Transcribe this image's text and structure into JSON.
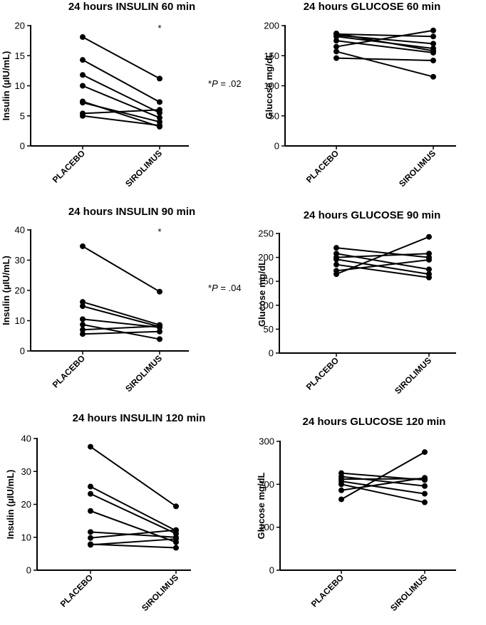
{
  "chart_data": [
    {
      "type": "line",
      "title": "24 hours INSULIN 60 min",
      "ylabel": "Insulin (µIU/mL)",
      "categories": [
        "PLACEBO",
        "SIROLIMUS"
      ],
      "ylim": [
        0,
        20
      ],
      "yticks": [
        0,
        5,
        10,
        15,
        20
      ],
      "significance_marker": "*",
      "annotation": {
        "star": "*",
        "p_italic": "P",
        "rest": " = .02"
      },
      "pairs": [
        [
          18.1,
          11.2
        ],
        [
          14.3,
          7.3
        ],
        [
          11.8,
          5.5
        ],
        [
          10.0,
          4.7
        ],
        [
          7.4,
          3.2
        ],
        [
          7.2,
          4.0
        ],
        [
          5.4,
          6.0
        ],
        [
          5.0,
          3.4
        ]
      ]
    },
    {
      "type": "line",
      "title": "24 hours GLUCOSE 60 min",
      "ylabel": "Glucose mg/dL",
      "categories": [
        "PLACEBO",
        "SIROLIMUS"
      ],
      "ylim": [
        0,
        200
      ],
      "yticks": [
        0,
        50,
        100,
        150,
        200
      ],
      "pairs": [
        [
          187,
          158
        ],
        [
          186,
          182
        ],
        [
          184,
          170
        ],
        [
          182,
          162
        ],
        [
          175,
          155
        ],
        [
          165,
          192
        ],
        [
          157,
          115
        ],
        [
          146,
          142
        ]
      ]
    },
    {
      "type": "line",
      "title": "24 hours INSULIN 90 min",
      "ylabel": "Insulin (µIU/mL)",
      "categories": [
        "PLACEBO",
        "SIROLIMUS"
      ],
      "ylim": [
        0,
        40
      ],
      "yticks": [
        0,
        10,
        20,
        30,
        40
      ],
      "significance_marker": "*",
      "annotation": {
        "star": "*",
        "p_italic": "P",
        "rest": " = .04"
      },
      "pairs": [
        [
          34.6,
          19.6
        ],
        [
          16.2,
          8.6
        ],
        [
          14.8,
          8.0
        ],
        [
          10.5,
          7.8
        ],
        [
          8.7,
          3.9
        ],
        [
          7.0,
          8.2
        ],
        [
          5.6,
          6.4
        ]
      ]
    },
    {
      "type": "line",
      "title": "24 hours GLUCOSE 90 min",
      "ylabel": "Glucose mg/dL",
      "categories": [
        "PLACEBO",
        "SIROLIMUS"
      ],
      "ylim": [
        0,
        250
      ],
      "yticks": [
        0,
        50,
        100,
        150,
        200,
        250
      ],
      "pairs": [
        [
          220,
          200
        ],
        [
          208,
          175
        ],
        [
          200,
          208
        ],
        [
          196,
          165
        ],
        [
          185,
          158
        ],
        [
          172,
          195
        ],
        [
          165,
          243
        ]
      ]
    },
    {
      "type": "line",
      "title": "24 hours INSULIN 120 min",
      "ylabel": "Insulin (µIU/mL)",
      "categories": [
        "PLACEBO",
        "SIROLIMUS"
      ],
      "ylim": [
        0,
        40
      ],
      "yticks": [
        0,
        10,
        20,
        30,
        40
      ],
      "pairs": [
        [
          37.5,
          19.4
        ],
        [
          25.4,
          12.0
        ],
        [
          23.2,
          11.1
        ],
        [
          18.0,
          8.5
        ],
        [
          11.6,
          10.0
        ],
        [
          9.8,
          12.2
        ],
        [
          7.9,
          6.8
        ],
        [
          7.7,
          9.5
        ]
      ]
    },
    {
      "type": "line",
      "title": "24 hours GLUCOSE 120 min",
      "ylabel": "Glucose mg/dL",
      "categories": [
        "PLACEBO",
        "SIROLIMUS"
      ],
      "ylim": [
        0,
        300
      ],
      "yticks": [
        0,
        100,
        200,
        300
      ],
      "pairs": [
        [
          226,
          210
        ],
        [
          218,
          196
        ],
        [
          212,
          213
        ],
        [
          207,
          178
        ],
        [
          200,
          158
        ],
        [
          186,
          215
        ],
        [
          165,
          275
        ]
      ]
    }
  ]
}
